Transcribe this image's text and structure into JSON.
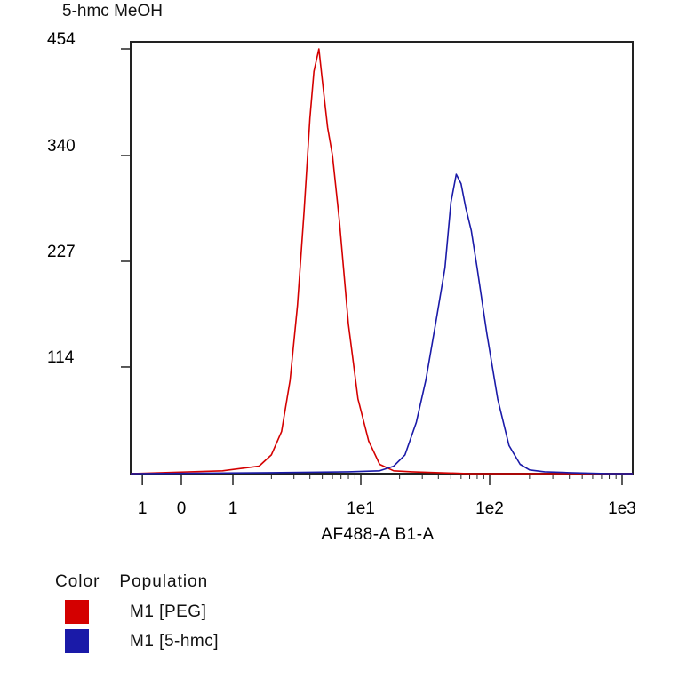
{
  "title": "5-hmc MeOH",
  "chart_data": {
    "type": "line",
    "xlabel": "AF488-A B1-A",
    "ylabel": "",
    "x_scale": "biexponential",
    "xlim": [
      -1.3,
      1150
    ],
    "ylim": [
      0,
      454
    ],
    "x_tick_labels": [
      "1",
      "0",
      "1",
      "1e1",
      "1e2",
      "1e3"
    ],
    "y_ticks": [
      114,
      227,
      340,
      454
    ],
    "grid": false,
    "legend_position": "bottom-left",
    "legend_headers": [
      "Color",
      "Population"
    ],
    "series": [
      {
        "name": "M1 [PEG]",
        "color": "#d40000",
        "x": [
          -1.3,
          0.8,
          1.6,
          2.0,
          2.4,
          2.8,
          3.2,
          3.6,
          4.0,
          4.3,
          4.7,
          5.0,
          5.5,
          6.0,
          6.8,
          8.0,
          9.5,
          11.5,
          14,
          18,
          25,
          40,
          70,
          150,
          1150
        ],
        "y": [
          0,
          3,
          8,
          20,
          45,
          100,
          180,
          280,
          380,
          430,
          454,
          420,
          370,
          340,
          270,
          160,
          80,
          35,
          10,
          3,
          2,
          1,
          0,
          0,
          0
        ]
      },
      {
        "name": "M1 [5-hmc]",
        "color": "#1a1aa8",
        "x": [
          -1.3,
          2,
          8,
          14,
          18,
          22,
          27,
          32,
          38,
          45,
          50,
          55,
          60,
          65,
          72,
          80,
          95,
          115,
          140,
          170,
          200,
          260,
          400,
          800,
          1150
        ],
        "y": [
          0,
          1,
          2,
          3,
          8,
          20,
          55,
          100,
          160,
          220,
          290,
          320,
          310,
          285,
          260,
          220,
          150,
          80,
          30,
          10,
          4,
          2,
          1,
          0,
          0
        ]
      }
    ]
  }
}
